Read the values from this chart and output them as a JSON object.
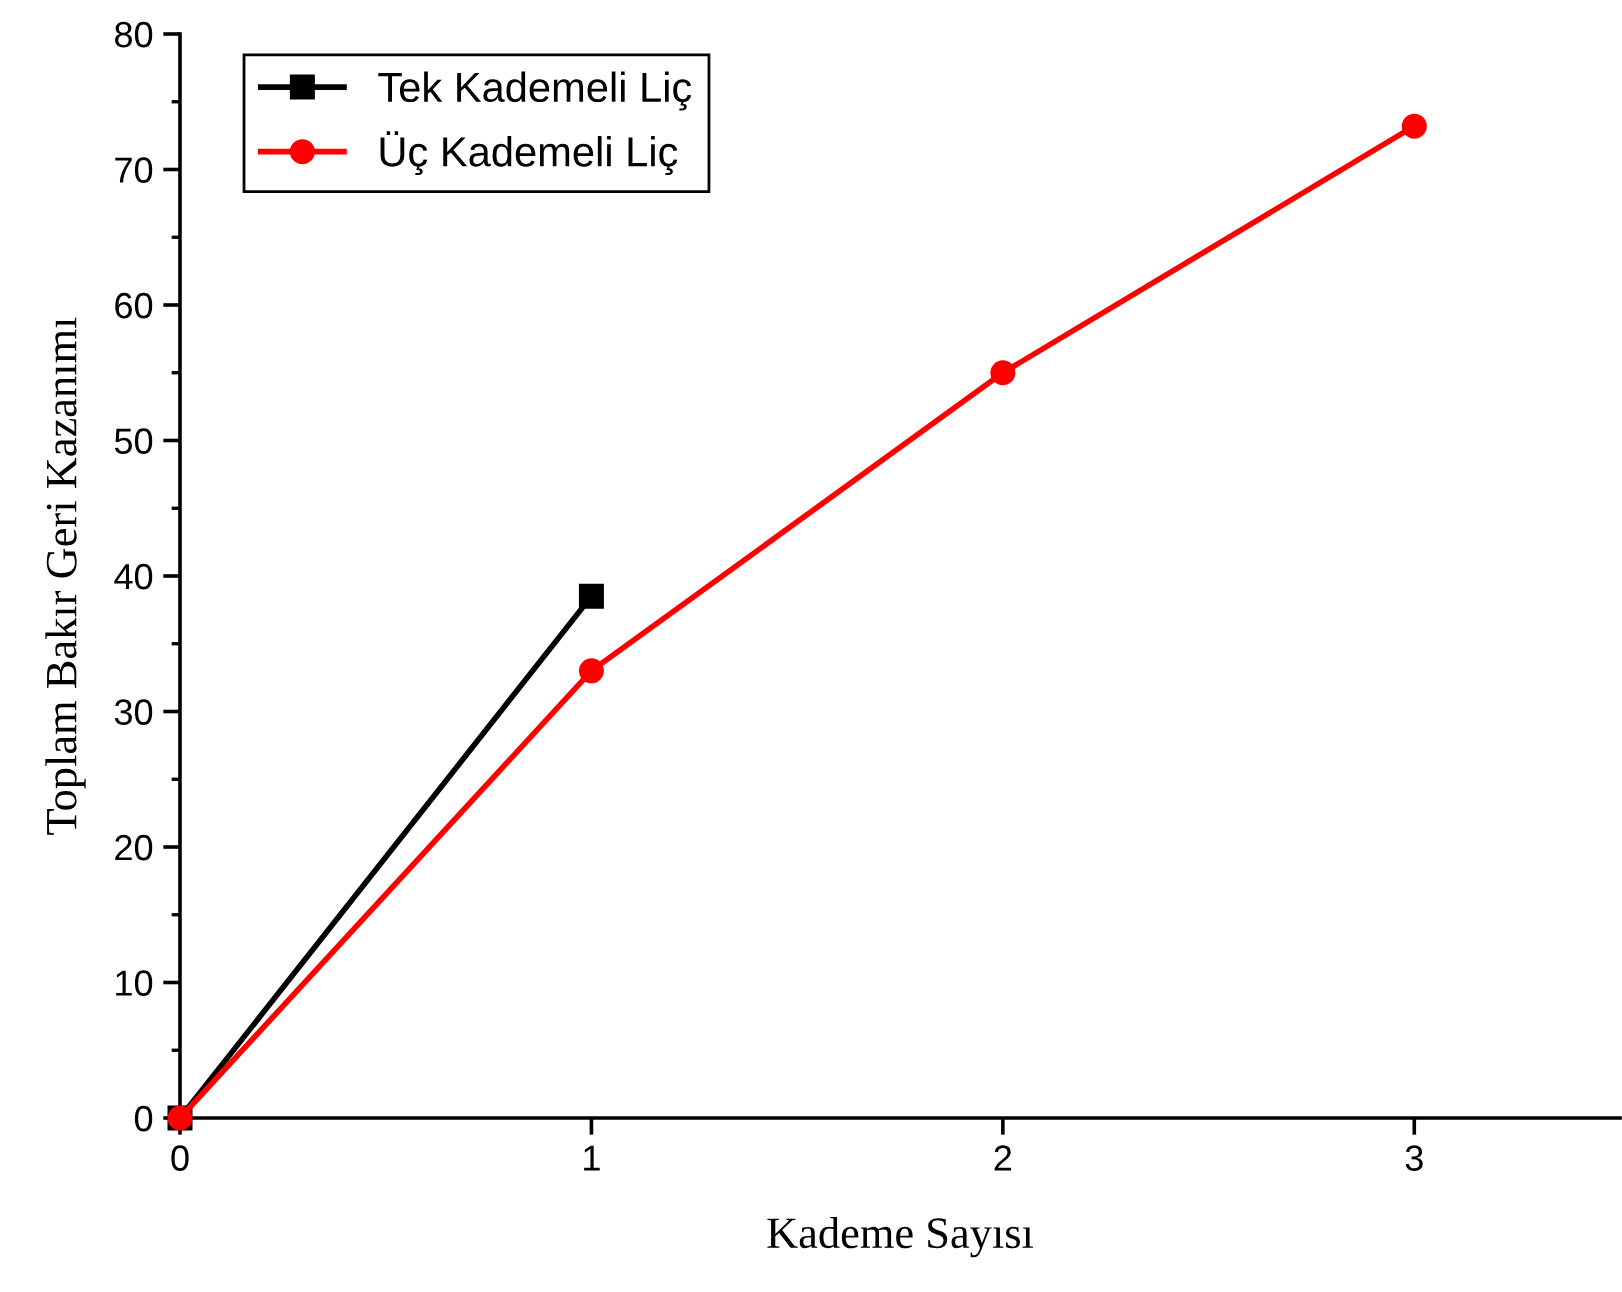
{
  "chart_data": {
    "type": "line",
    "xlabel": "Kademe Sayısı",
    "ylabel": "Toplam Bakır Geri Kazanımı",
    "xlim": [
      0,
      3.5
    ],
    "xticks": [
      0,
      1,
      2,
      3
    ],
    "ylim": [
      0,
      80
    ],
    "yticks": [
      0,
      10,
      20,
      30,
      40,
      50,
      60,
      70,
      80
    ],
    "grid": false,
    "legend": "top left",
    "series": [
      {
        "name": "Tek Kademeli Liç",
        "color": "#000000",
        "marker": "square",
        "x": [
          0,
          1
        ],
        "values": [
          0,
          38.5
        ]
      },
      {
        "name": "Üç Kademeli Liç",
        "color": "#ff0000",
        "marker": "circle",
        "x": [
          0,
          1,
          2,
          3
        ],
        "values": [
          0,
          33,
          55,
          73.2
        ]
      }
    ]
  }
}
